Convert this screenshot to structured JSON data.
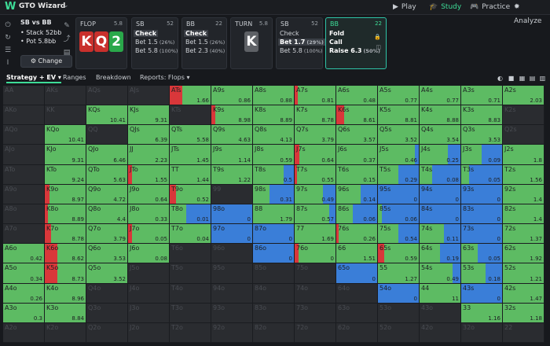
{
  "app": {
    "name": "GTO Wizard",
    "logo": "W"
  },
  "nav": [
    {
      "label": "Play",
      "icon": "play-icon",
      "active": false
    },
    {
      "label": "Study",
      "icon": "graduation-cap-icon",
      "active": true
    },
    {
      "label": "Practice",
      "icon": "gamepad-icon",
      "active": false
    },
    {
      "label": "Analyze",
      "icon": "lightbulb-icon",
      "active": false
    }
  ],
  "spot": {
    "title": "SB vs BB",
    "stack": "Stack 52bb",
    "pot": "Pot 5.8bb",
    "change_label": "Change"
  },
  "panels": {
    "flop": {
      "title": "FLOP",
      "num": "5.8",
      "cards": [
        "K",
        "Q",
        "2"
      ]
    },
    "sb1": {
      "title": "SB",
      "num": "52",
      "actions": [
        {
          "label": "Check",
          "pct": ""
        },
        {
          "label": "Bet 1.5",
          "pct": "(26%)"
        },
        {
          "label": "Bet 5.8",
          "pct": "(100%)"
        }
      ]
    },
    "bb1": {
      "title": "BB",
      "num": "22",
      "actions": [
        {
          "label": "Check",
          "pct": ""
        },
        {
          "label": "Bet 1.5",
          "pct": "(26%)"
        },
        {
          "label": "Bet 2.3",
          "pct": "(40%)"
        }
      ]
    },
    "turn": {
      "title": "TURN",
      "num": "5.8",
      "card": "K"
    },
    "sb2": {
      "title": "SB",
      "num": "52",
      "actions": [
        {
          "label": "Check",
          "pct": ""
        },
        {
          "label": "Bet 1.7",
          "pct": "(29%)"
        },
        {
          "label": "Bet 5.8",
          "pct": "(100%)"
        }
      ]
    },
    "bb2": {
      "title": "BB",
      "num": "22",
      "actions": [
        {
          "label": "Fold",
          "pct": ""
        },
        {
          "label": "Call",
          "pct": ""
        },
        {
          "label": "Raise 6.3",
          "pct": "(50%)"
        }
      ]
    }
  },
  "toolbar": {
    "strategy": "Strategy + EV",
    "ranges": "Ranges",
    "breakdown": "Breakdown",
    "reports": "Reports: Flops"
  },
  "colors": {
    "fold": "#3a7ed8",
    "call": "#5dbb63",
    "raise": "#d9373a",
    "na": "#2a2c30"
  },
  "grid": [
    [
      {
        "h": "AA"
      },
      {
        "h": "AKs"
      },
      {
        "h": "AQs"
      },
      {
        "h": "AJs"
      },
      {
        "h": "ATs",
        "ev": "1.66",
        "r": 0.3
      },
      {
        "h": "A9s",
        "ev": "0.86"
      },
      {
        "h": "A8s",
        "ev": "0.88"
      },
      {
        "h": "A7s",
        "ev": "0.81",
        "r": 0.08
      },
      {
        "h": "A6s",
        "ev": "0.48"
      },
      {
        "h": "A5s",
        "ev": "0.77"
      },
      {
        "h": "A4s",
        "ev": "0.77"
      },
      {
        "h": "A3s",
        "ev": "0.71"
      },
      {
        "h": "A2s",
        "ev": "2.03"
      }
    ],
    [
      {
        "h": "AKo"
      },
      {
        "h": "KK"
      },
      {
        "h": "KQs",
        "ev": "10.41"
      },
      {
        "h": "KJs",
        "ev": "9.31"
      },
      {
        "h": "KTs"
      },
      {
        "h": "K9s",
        "ev": "8.98",
        "r": 0.1
      },
      {
        "h": "K8s",
        "ev": "8.89"
      },
      {
        "h": "K7s",
        "ev": "8.78"
      },
      {
        "h": "K6s",
        "ev": "8.61",
        "r": 0.2
      },
      {
        "h": "K5s",
        "ev": "8.81"
      },
      {
        "h": "K4s",
        "ev": "8.88"
      },
      {
        "h": "K3s",
        "ev": "8.83"
      },
      {
        "h": "K2s"
      }
    ],
    [
      {
        "h": "AQo"
      },
      {
        "h": "KQo",
        "ev": "10.41"
      },
      {
        "h": "QQ"
      },
      {
        "h": "QJs",
        "ev": "6.39"
      },
      {
        "h": "QTs",
        "ev": "5.58"
      },
      {
        "h": "Q9s",
        "ev": "4.63"
      },
      {
        "h": "Q8s",
        "ev": "4.13"
      },
      {
        "h": "Q7s",
        "ev": "3.79"
      },
      {
        "h": "Q6s",
        "ev": "3.57"
      },
      {
        "h": "Q5s",
        "ev": "3.52"
      },
      {
        "h": "Q4s",
        "ev": "3.54"
      },
      {
        "h": "Q3s",
        "ev": "3.53"
      },
      {
        "h": "Q2s"
      }
    ],
    [
      {
        "h": "AJo"
      },
      {
        "h": "KJo",
        "ev": "9.31"
      },
      {
        "h": "QJo",
        "ev": "6.46"
      },
      {
        "h": "JJ",
        "ev": "2.23"
      },
      {
        "h": "JTs",
        "ev": "1.45"
      },
      {
        "h": "J9s",
        "ev": "1.14"
      },
      {
        "h": "J8s",
        "ev": "0.59"
      },
      {
        "h": "J7s",
        "ev": "0.64",
        "r": 0.12
      },
      {
        "h": "J6s",
        "ev": "0.37"
      },
      {
        "h": "J5s",
        "ev": "0.46",
        "f": 0.1
      },
      {
        "h": "J4s",
        "ev": "0.25",
        "f": 0.3
      },
      {
        "h": "J3s",
        "ev": "0.09",
        "f": 0.5
      },
      {
        "h": "J2s",
        "ev": "1.8"
      }
    ],
    [
      {
        "h": "ATo"
      },
      {
        "h": "KTo",
        "ev": "9.24"
      },
      {
        "h": "QTo",
        "ev": "5.63"
      },
      {
        "h": "JTo",
        "ev": "1.55",
        "r": 0.1
      },
      {
        "h": "TT",
        "ev": "1.44"
      },
      {
        "h": "T9s",
        "ev": "1.22"
      },
      {
        "h": "T8s",
        "ev": "0.5",
        "f": 0.25
      },
      {
        "h": "T7s",
        "ev": "0.55",
        "r": 0.05
      },
      {
        "h": "T6s",
        "ev": "0.15"
      },
      {
        "h": "T5s",
        "ev": "0.29",
        "f": 0.5
      },
      {
        "h": "T4s",
        "ev": "0.08",
        "f": 0.7
      },
      {
        "h": "T3s",
        "ev": "0.05",
        "f": 0.8
      },
      {
        "h": "T2s",
        "ev": "1.56"
      }
    ],
    [
      {
        "h": "A9o"
      },
      {
        "h": "K9o",
        "ev": "8.97",
        "r": 0.12
      },
      {
        "h": "Q9o",
        "ev": "4.72"
      },
      {
        "h": "J9o",
        "ev": "0.64"
      },
      {
        "h": "T9o",
        "ev": "0.52",
        "r": 0.15
      },
      {
        "h": "99",
        "na": true
      },
      {
        "h": "98s",
        "ev": "0.31",
        "f": 0.6
      },
      {
        "h": "97s",
        "ev": "0.49",
        "f": 0.3
      },
      {
        "h": "96s",
        "ev": "0.14",
        "f": 0.4
      },
      {
        "h": "95s",
        "ev": "0",
        "f": 1
      },
      {
        "h": "94s",
        "ev": "0",
        "f": 1
      },
      {
        "h": "93s",
        "ev": "0",
        "f": 1
      },
      {
        "h": "92s",
        "ev": "1.4"
      }
    ],
    [
      {
        "h": "A8o"
      },
      {
        "h": "K8o",
        "ev": "8.89",
        "r": 0.08
      },
      {
        "h": "Q8o",
        "ev": "4.4"
      },
      {
        "h": "J8o",
        "ev": "0.33"
      },
      {
        "h": "T8o",
        "ev": "0.01",
        "f": 0.6
      },
      {
        "h": "98o",
        "ev": "0",
        "f": 1
      },
      {
        "h": "88",
        "ev": "1.79"
      },
      {
        "h": "87s",
        "ev": "0.57",
        "f": 0.15
      },
      {
        "h": "86s",
        "ev": "0.06",
        "f": 0.6
      },
      {
        "h": "85s",
        "ev": "0.06",
        "f": 0.9
      },
      {
        "h": "84s",
        "ev": "0",
        "f": 1
      },
      {
        "h": "83s",
        "ev": "0",
        "f": 1
      },
      {
        "h": "82s",
        "ev": "1.4"
      }
    ],
    [
      {
        "h": "A7o"
      },
      {
        "h": "K7o",
        "ev": "8.78",
        "r": 0.15
      },
      {
        "h": "Q7o",
        "ev": "3.79"
      },
      {
        "h": "J7o",
        "ev": "0.05",
        "r": 0.1
      },
      {
        "h": "T7o",
        "ev": "0.04"
      },
      {
        "h": "97o",
        "ev": "0",
        "f": 1
      },
      {
        "h": "87o",
        "ev": "0",
        "f": 1
      },
      {
        "h": "77",
        "ev": "1.69"
      },
      {
        "h": "76s",
        "ev": "0.26",
        "r": 0.05
      },
      {
        "h": "75s",
        "ev": "0.54",
        "f": 0.5
      },
      {
        "h": "74s",
        "ev": "0.11",
        "f": 0.4
      },
      {
        "h": "73s",
        "ev": "0",
        "f": 1
      },
      {
        "h": "72s",
        "ev": "1.37"
      }
    ],
    [
      {
        "h": "A6o",
        "ev": "0.42"
      },
      {
        "h": "K6o",
        "ev": "8.62",
        "r": 0.3
      },
      {
        "h": "Q6o",
        "ev": "3.53"
      },
      {
        "h": "J6o",
        "ev": "0.08"
      },
      {
        "h": "T6o",
        "na": true
      },
      {
        "h": "96o",
        "na": true
      },
      {
        "h": "86o",
        "ev": "0",
        "f": 1
      },
      {
        "h": "76o",
        "ev": "0",
        "r": 0.1
      },
      {
        "h": "66",
        "ev": "1.51"
      },
      {
        "h": "65s",
        "ev": "0.59",
        "r": 0.15
      },
      {
        "h": "64s",
        "ev": "0.19",
        "f": 0.5
      },
      {
        "h": "63s",
        "ev": "0.05",
        "f": 0.6
      },
      {
        "h": "62s",
        "ev": "1.92"
      }
    ],
    [
      {
        "h": "A5o",
        "ev": "0.34"
      },
      {
        "h": "K5o",
        "ev": "8.73",
        "r": 0.3
      },
      {
        "h": "Q5o",
        "ev": "3.52"
      },
      {
        "h": "J5o",
        "na": true
      },
      {
        "h": "T5o",
        "na": true
      },
      {
        "h": "95o",
        "na": true
      },
      {
        "h": "85o",
        "na": true
      },
      {
        "h": "75o",
        "na": true
      },
      {
        "h": "65o",
        "ev": "0",
        "f": 1
      },
      {
        "h": "55",
        "ev": "1.27"
      },
      {
        "h": "54s",
        "ev": "0.49",
        "f": 0.2
      },
      {
        "h": "53s",
        "ev": "0.18",
        "f": 0.4
      },
      {
        "h": "52s",
        "ev": "1.21"
      }
    ],
    [
      {
        "h": "A4o",
        "ev": "0.26"
      },
      {
        "h": "K4o",
        "ev": "8.96"
      },
      {
        "h": "Q4o",
        "na": true
      },
      {
        "h": "J4o",
        "na": true
      },
      {
        "h": "T4o",
        "na": true
      },
      {
        "h": "94o",
        "na": true
      },
      {
        "h": "84o",
        "na": true
      },
      {
        "h": "74o",
        "na": true
      },
      {
        "h": "64o",
        "na": true
      },
      {
        "h": "54o",
        "ev": "0",
        "f": 1
      },
      {
        "h": "44",
        "ev": "11"
      },
      {
        "h": "43s",
        "ev": "0",
        "f": 1
      },
      {
        "h": "42s",
        "ev": "1.47"
      }
    ],
    [
      {
        "h": "A3o",
        "ev": "0.3"
      },
      {
        "h": "K3o",
        "ev": "8.84"
      },
      {
        "h": "Q3o",
        "na": true
      },
      {
        "h": "J3o",
        "na": true
      },
      {
        "h": "T3o",
        "na": true
      },
      {
        "h": "93o",
        "na": true
      },
      {
        "h": "83o",
        "na": true
      },
      {
        "h": "73o",
        "na": true
      },
      {
        "h": "63o",
        "na": true
      },
      {
        "h": "53o",
        "na": true
      },
      {
        "h": "43o",
        "na": true
      },
      {
        "h": "33",
        "ev": "1.16"
      },
      {
        "h": "32s",
        "ev": "1.18"
      }
    ],
    [
      {
        "h": "A2o"
      },
      {
        "h": "K2o"
      },
      {
        "h": "Q2o"
      },
      {
        "h": "J2o"
      },
      {
        "h": "T2o"
      },
      {
        "h": "92o"
      },
      {
        "h": "82o"
      },
      {
        "h": "72o"
      },
      {
        "h": "62o"
      },
      {
        "h": "52o"
      },
      {
        "h": "42o"
      },
      {
        "h": "32o"
      },
      {
        "h": "22"
      }
    ]
  ]
}
